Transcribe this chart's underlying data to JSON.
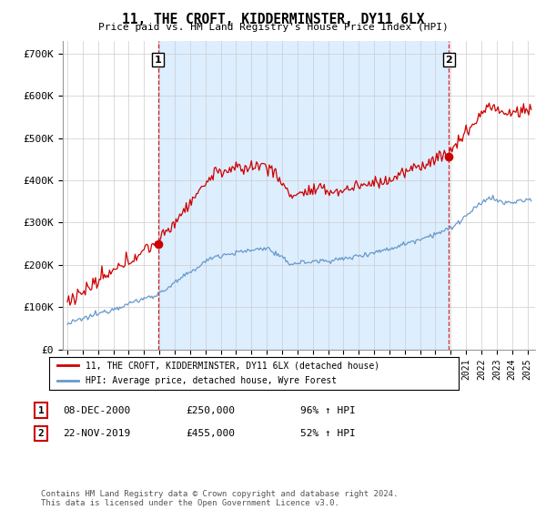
{
  "title": "11, THE CROFT, KIDDERMINSTER, DY11 6LX",
  "subtitle": "Price paid vs. HM Land Registry's House Price Index (HPI)",
  "ylabel_ticks": [
    "£0",
    "£100K",
    "£200K",
    "£300K",
    "£400K",
    "£500K",
    "£600K",
    "£700K"
  ],
  "ytick_values": [
    0,
    100000,
    200000,
    300000,
    400000,
    500000,
    600000,
    700000
  ],
  "ylim": [
    0,
    730000
  ],
  "xlim_start": 1994.7,
  "xlim_end": 2025.5,
  "red_color": "#cc0000",
  "blue_color": "#6699cc",
  "shade_color": "#ddeeff",
  "legend_label_red": "11, THE CROFT, KIDDERMINSTER, DY11 6LX (detached house)",
  "legend_label_blue": "HPI: Average price, detached house, Wyre Forest",
  "sale1_label": "1",
  "sale1_date": "08-DEC-2000",
  "sale1_price": "£250,000",
  "sale1_hpi": "96% ↑ HPI",
  "sale2_label": "2",
  "sale2_date": "22-NOV-2019",
  "sale2_price": "£455,000",
  "sale2_hpi": "52% ↑ HPI",
  "footnote": "Contains HM Land Registry data © Crown copyright and database right 2024.\nThis data is licensed under the Open Government Licence v3.0.",
  "sale1_x": 2000.917,
  "sale1_y": 250000,
  "sale2_x": 2019.875,
  "sale2_y": 455000,
  "bg_color": "#ffffff",
  "grid_color": "#cccccc"
}
